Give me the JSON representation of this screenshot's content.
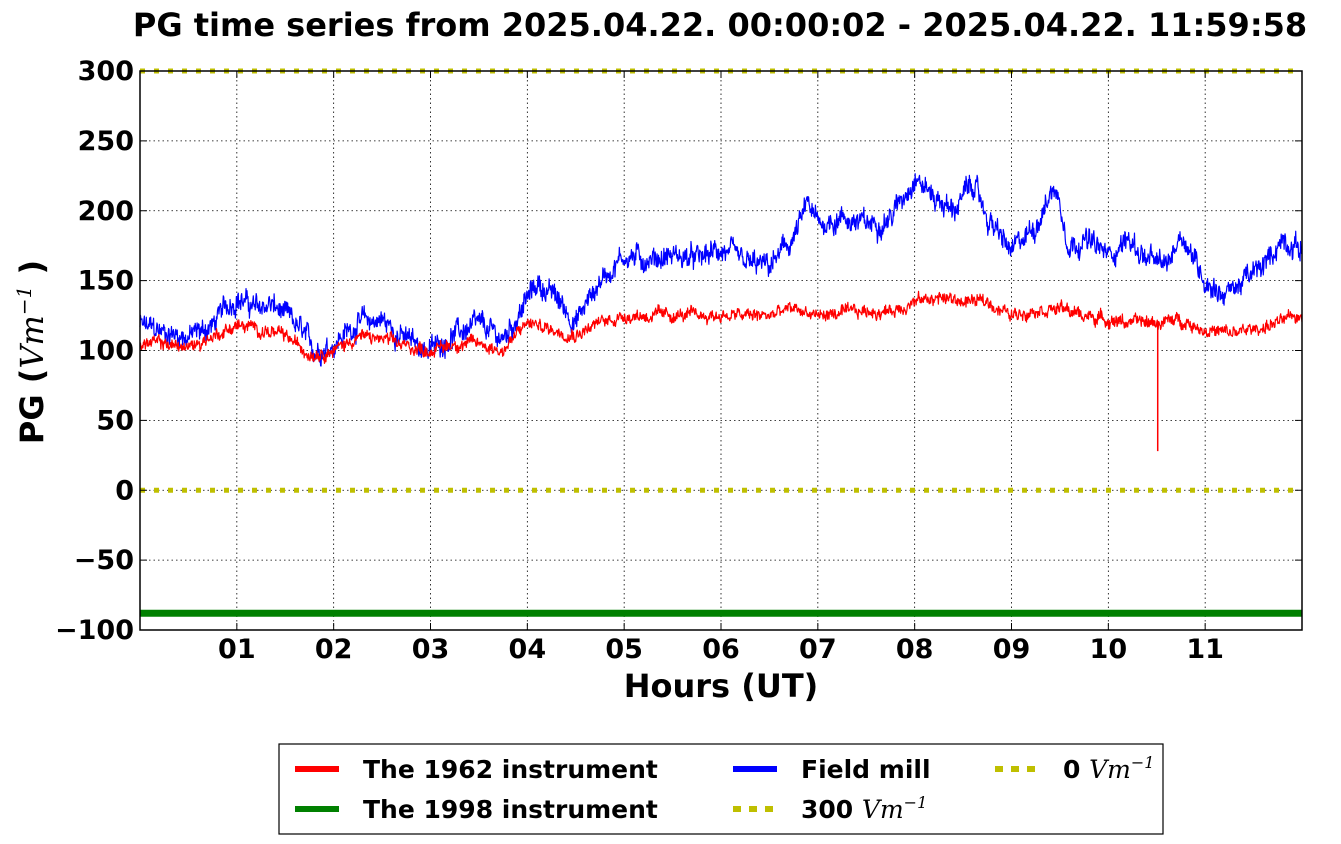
{
  "chart_data": {
    "type": "line",
    "title": "PG time series from 2025.04.22. 00:00:02 - 2025.04.22. 11:59:58",
    "xlabel": "Hours (UT)",
    "ylabel_prefix": "PG (",
    "ylabel_unit": "Vm",
    "ylabel_exp": "−1",
    "ylabel_suffix": " )",
    "xlim": [
      0,
      12
    ],
    "ylim": [
      -100,
      300
    ],
    "grid": true,
    "xticks": [
      1,
      2,
      3,
      4,
      5,
      6,
      7,
      8,
      9,
      10,
      11
    ],
    "xtick_labels": [
      "01",
      "02",
      "03",
      "04",
      "05",
      "06",
      "07",
      "08",
      "09",
      "10",
      "11"
    ],
    "yticks": [
      -100,
      -50,
      0,
      50,
      100,
      150,
      200,
      250,
      300
    ],
    "ytick_labels": [
      "−100",
      "−50",
      "0",
      "50",
      "100",
      "150",
      "200",
      "250",
      "300"
    ],
    "legend_position": "below",
    "legend": [
      {
        "label": "The 1962 instrument",
        "unit": "",
        "exp": "",
        "color": "#ff0000",
        "style": "solid"
      },
      {
        "label": "The 1998 instrument",
        "unit": "",
        "exp": "",
        "color": "#008000",
        "style": "solid"
      },
      {
        "label": "Field mill",
        "unit": "",
        "exp": "",
        "color": "#0000ff",
        "style": "solid"
      },
      {
        "label": "300 ",
        "unit": "Vm",
        "exp": "−1",
        "color": "#bfbf00",
        "style": "dotted"
      },
      {
        "label": "0 ",
        "unit": "Vm",
        "exp": "−1",
        "color": "#bfbf00",
        "style": "dotted"
      }
    ],
    "series": [
      {
        "name": "Field mill",
        "color": "#0000ff",
        "noise": 7,
        "x": [
          0,
          0.25,
          0.5,
          0.75,
          0.9,
          1.0,
          1.2,
          1.35,
          1.5,
          1.65,
          1.8,
          2.0,
          2.25,
          2.5,
          2.7,
          3.0,
          3.25,
          3.5,
          3.75,
          3.9,
          4.1,
          4.3,
          4.5,
          4.75,
          5.0,
          5.25,
          5.5,
          5.75,
          6.0,
          6.25,
          6.5,
          6.75,
          6.9,
          7.0,
          7.25,
          7.5,
          7.75,
          8.0,
          8.2,
          8.4,
          8.6,
          8.75,
          9.0,
          9.25,
          9.45,
          9.6,
          9.75,
          10.0,
          10.2,
          10.4,
          10.6,
          10.75,
          11.0,
          11.2,
          11.4,
          11.6,
          11.8,
          12.0
        ],
        "y": [
          118,
          113,
          110,
          118,
          132,
          138,
          130,
          133,
          125,
          115,
          100,
          105,
          120,
          122,
          110,
          100,
          112,
          118,
          108,
          125,
          148,
          138,
          120,
          150,
          168,
          165,
          168,
          165,
          172,
          162,
          160,
          180,
          205,
          190,
          195,
          190,
          195,
          225,
          210,
          200,
          220,
          195,
          170,
          190,
          218,
          175,
          180,
          168,
          180,
          165,
          160,
          185,
          150,
          140,
          150,
          160,
          180,
          172
        ]
      },
      {
        "name": "The 1962 instrument",
        "color": "#ff0000",
        "noise": 4,
        "x": [
          0,
          0.25,
          0.5,
          0.75,
          1.0,
          1.25,
          1.5,
          1.75,
          2.0,
          2.25,
          2.5,
          2.75,
          3.0,
          3.25,
          3.5,
          3.75,
          4.0,
          4.25,
          4.5,
          4.75,
          5.0,
          5.25,
          5.5,
          6.0,
          6.5,
          6.75,
          7.0,
          7.5,
          7.75,
          8.0,
          8.25,
          8.5,
          8.75,
          9.0,
          9.25,
          9.5,
          9.75,
          10.0,
          10.25,
          10.5,
          10.75,
          11.0,
          11.25,
          11.5,
          11.75,
          12.0
        ],
        "y": [
          105,
          105,
          102,
          110,
          118,
          115,
          110,
          98,
          100,
          110,
          108,
          103,
          100,
          105,
          105,
          100,
          120,
          115,
          112,
          120,
          125,
          125,
          125,
          125,
          125,
          130,
          125,
          128,
          128,
          135,
          138,
          135,
          135,
          125,
          130,
          130,
          125,
          122,
          120,
          120,
          122,
          115,
          112,
          115,
          120,
          125
        ],
        "spike_x": 10.51,
        "spike_y": 28
      },
      {
        "name": "The 1998 instrument",
        "color": "#008000",
        "x": [
          0,
          12
        ],
        "y": [
          -88,
          -88
        ]
      },
      {
        "name": "300 Vm−1",
        "color": "#bfbf00",
        "x": [
          0,
          12
        ],
        "y": [
          300,
          300
        ]
      },
      {
        "name": "0 Vm−1",
        "color": "#bfbf00",
        "x": [
          0,
          12
        ],
        "y": [
          0,
          0
        ]
      }
    ]
  }
}
